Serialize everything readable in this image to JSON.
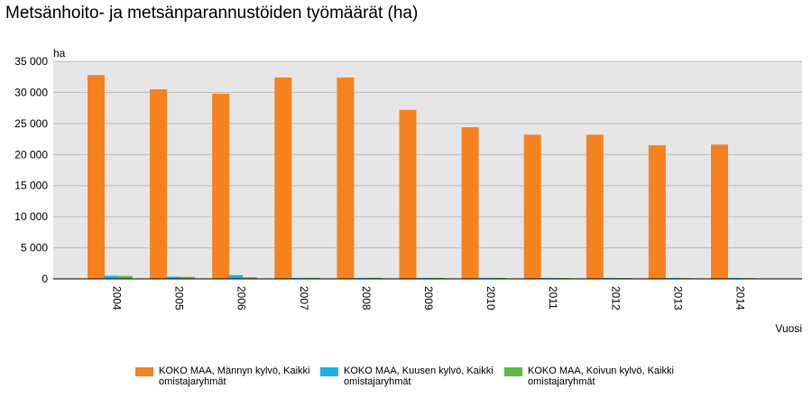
{
  "page": {
    "title": "Metsänhoito- ja metsänparannustöiden työmäärät (ha)"
  },
  "chart_data": {
    "type": "bar",
    "title": "Metsänhoito- ja metsänparannustöiden työmäärät (ha)",
    "xlabel": "Vuosi",
    "ylabel": "ha",
    "ylim": [
      0,
      35000
    ],
    "yticks": [
      0,
      5000,
      10000,
      15000,
      20000,
      25000,
      30000,
      35000
    ],
    "ytick_labels": [
      "0",
      "5 000",
      "10 000",
      "15 000",
      "20 000",
      "25 000",
      "30 000",
      "35 000"
    ],
    "grid": true,
    "legend_position": "bottom",
    "categories": [
      "2004",
      "2005",
      "2006",
      "2007",
      "2008",
      "2009",
      "2010",
      "2011",
      "2012",
      "2013",
      "2014"
    ],
    "series": [
      {
        "name": "KOKO MAA, Männyn kylvö, Kaikki omistajaryhmät",
        "color": "#f5821f",
        "values": [
          32800,
          30500,
          29800,
          32400,
          32400,
          27200,
          24400,
          23200,
          23200,
          21500,
          21600
        ]
      },
      {
        "name": "KOKO MAA, Kuusen kylvö, Kaikki omistajaryhmät",
        "color": "#1ab0e8",
        "values": [
          500,
          350,
          600,
          150,
          150,
          150,
          150,
          150,
          150,
          150,
          150
        ]
      },
      {
        "name": "KOKO MAA, Koivun kylvö, Kaikki omistajaryhmät",
        "color": "#5cbd3f",
        "values": [
          480,
          330,
          250,
          180,
          180,
          170,
          150,
          140,
          130,
          120,
          120
        ]
      }
    ]
  }
}
